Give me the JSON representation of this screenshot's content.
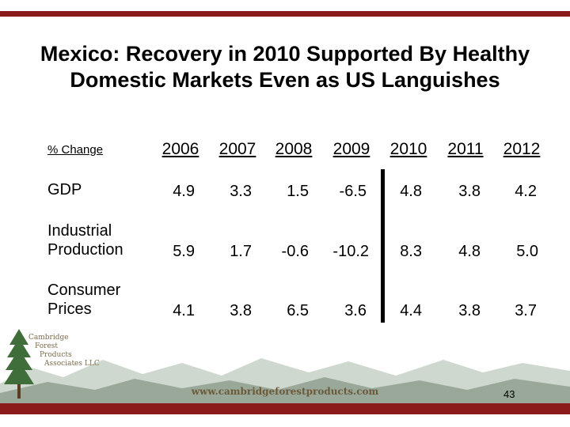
{
  "title_lines": [
    "Mexico: Recovery in 2010 Supported By Healthy",
    "Domestic Markets Even as US Languishes"
  ],
  "table": {
    "header_label": "% Change",
    "years": [
      "2006",
      "2007",
      "2008",
      "2009",
      "2010",
      "2011",
      "2012"
    ],
    "rows": [
      {
        "label_lines": [
          "GDP"
        ],
        "values": [
          "4.9",
          "3.3",
          "1.5",
          "-6.5",
          "4.8",
          "3.8",
          "4.2"
        ]
      },
      {
        "label_lines": [
          "Industrial",
          "Production"
        ],
        "values": [
          "5.9",
          "1.7",
          "-0.6",
          "-10.2",
          "8.3",
          "4.8",
          "5.0"
        ]
      },
      {
        "label_lines": [
          "Consumer",
          "Prices"
        ],
        "values": [
          "4.1",
          "3.8",
          "6.5",
          "3.6",
          "4.4",
          "3.8",
          "3.7"
        ]
      }
    ]
  },
  "logo": {
    "lines": [
      "Cambridge",
      "Forest",
      "Products",
      "Associates LLC"
    ]
  },
  "footer": {
    "url": "www.cambridgeforestproducts.com",
    "page_number": "43"
  },
  "colors": {
    "accent": "#8b1a1a",
    "tree": "#3f6e3a",
    "hills_dark": "#9aa89a",
    "hills_light": "#cfd8cf"
  }
}
